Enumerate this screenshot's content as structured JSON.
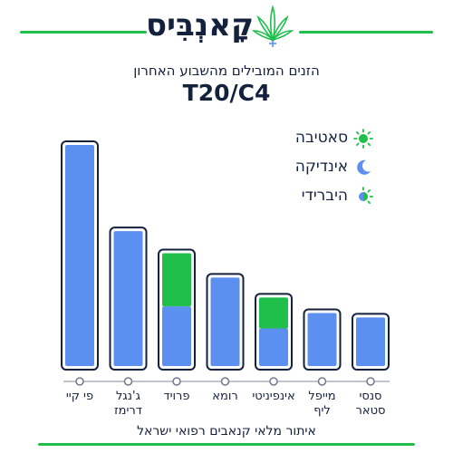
{
  "header": {
    "brand": "קָאנְבִּיס",
    "logo_icon": "cannabis-leaf-icon"
  },
  "footer": {
    "text": "איתור מלאי קנאבים רפואי ישראל"
  },
  "colors": {
    "bar_blue": "#5b8ff0",
    "bar_green": "#1fbf4a",
    "outline": "#14213d",
    "brand_green": "#1fbf4a"
  },
  "legend": [
    {
      "label": "סאטיבה",
      "icon": "sun-icon"
    },
    {
      "label": "אינדיקה",
      "icon": "moon-icon"
    },
    {
      "label": "היברידי",
      "icon": "hybrid-icon"
    }
  ],
  "chart_data": {
    "type": "bar",
    "subtitle": "הזנים המובילים מהשבוע האחרון",
    "title": "T20/C4",
    "categories": [
      "פי קיי",
      "ג'נגל דרימז",
      "פרויד",
      "רומא",
      "אינפיניטי",
      "מייפל ליף",
      "סנסי סטאר"
    ],
    "category_lines": [
      [
        "פי קיי"
      ],
      [
        "ג'נגל",
        "דרימז"
      ],
      [
        "פרויד"
      ],
      [
        "רומא"
      ],
      [
        "אינפיניטי"
      ],
      [
        "מייפל",
        "ליף"
      ],
      [
        "סנסי",
        "סטאר"
      ]
    ],
    "series": [
      {
        "values": [
          100,
          61,
          27,
          40,
          17,
          24,
          22
        ]
      },
      {
        "values": [
          0,
          0,
          24,
          0,
          14,
          0,
          0
        ]
      }
    ],
    "ylim": [
      0,
      100
    ],
    "grid": false,
    "legend_position": "right"
  }
}
